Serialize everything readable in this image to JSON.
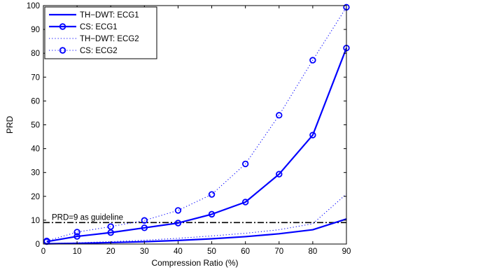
{
  "chart_data": {
    "type": "line",
    "title": "",
    "xlabel": "Compression Ratio (%)",
    "ylabel": "PRD",
    "xlim": [
      0,
      90
    ],
    "ylim": [
      0,
      100
    ],
    "xticks": [
      0,
      10,
      20,
      30,
      40,
      50,
      60,
      70,
      80,
      90
    ],
    "yticks": [
      0,
      10,
      20,
      30,
      40,
      50,
      60,
      70,
      80,
      90,
      100
    ],
    "grid": false,
    "legend_position": "top-left",
    "series": [
      {
        "name": "TH−DWT: ECG1",
        "color": "#0000ff",
        "style": "solid",
        "marker": "none",
        "x": [
          1,
          10,
          20,
          30,
          40,
          50,
          60,
          70,
          80,
          90
        ],
        "y": [
          0.1,
          0.3,
          0.6,
          1.0,
          1.5,
          2.2,
          3.1,
          4.3,
          6.0,
          10.5
        ]
      },
      {
        "name": "CS: ECG1",
        "color": "#0000ff",
        "style": "solid",
        "marker": "circle",
        "x": [
          1,
          10,
          20,
          30,
          40,
          50,
          60,
          70,
          80,
          90
        ],
        "y": [
          1.0,
          3.2,
          4.8,
          6.8,
          8.8,
          12.5,
          17.6,
          29.3,
          45.7,
          82.2
        ]
      },
      {
        "name": "TH−DWT: ECG2",
        "color": "#0000ff",
        "style": "dotted",
        "marker": "none",
        "x": [
          1,
          10,
          20,
          30,
          40,
          50,
          60,
          70,
          80,
          90
        ],
        "y": [
          0.2,
          0.5,
          1.0,
          1.6,
          2.4,
          3.4,
          4.5,
          6.0,
          8.5,
          21.0
        ]
      },
      {
        "name": "CS: ECG2",
        "color": "#0000ff",
        "style": "dotted",
        "marker": "circle",
        "x": [
          1,
          10,
          20,
          30,
          40,
          50,
          60,
          70,
          80,
          90
        ],
        "y": [
          1.3,
          5.0,
          7.3,
          9.9,
          14.1,
          20.8,
          33.6,
          54.0,
          77.1,
          99.3
        ]
      }
    ],
    "reference_line": {
      "y": 9,
      "style": "dash-dot",
      "color": "#000000",
      "label": "PRD=9 as guideline"
    }
  }
}
